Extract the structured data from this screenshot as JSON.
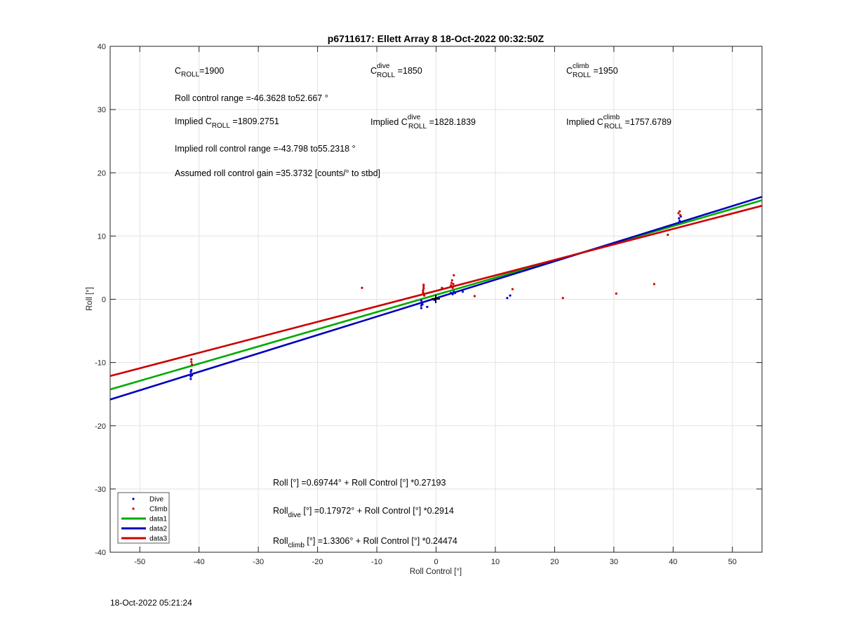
{
  "chart_data": {
    "type": "scatter",
    "title": "p6711617: Ellett Array 8 18-Oct-2022 00:32:50Z",
    "xlabel": "Roll Control [°]",
    "ylabel": "Roll [°]",
    "xlim": [
      -55,
      55
    ],
    "ylim": [
      -40,
      40
    ],
    "x_ticks": [
      -50,
      -40,
      -30,
      -20,
      -10,
      0,
      10,
      20,
      30,
      40,
      50
    ],
    "y_ticks": [
      -40,
      -30,
      -20,
      -10,
      0,
      10,
      20,
      30,
      40
    ],
    "grid": true,
    "legend_position": "bottom-left",
    "series": [
      {
        "name": "Dive",
        "kind": "points",
        "color": "#0000cc",
        "points": [
          [
            -41.4,
            -11.5
          ],
          [
            -41.4,
            -11.9
          ],
          [
            -41.4,
            -12.2
          ],
          [
            -41.4,
            -12.6
          ],
          [
            -41.3,
            -11.2
          ],
          [
            -41.2,
            -12.0
          ],
          [
            -2.5,
            -0.2
          ],
          [
            -2.5,
            -0.6
          ],
          [
            -2.5,
            -1.0
          ],
          [
            -2.5,
            -1.4
          ],
          [
            -2.3,
            -0.8
          ],
          [
            -1.5,
            -1.2
          ],
          [
            -0.3,
            -0.1
          ],
          [
            0.1,
            0.1
          ],
          [
            2.5,
            1.0
          ],
          [
            2.8,
            0.8
          ],
          [
            3.0,
            1.2
          ],
          [
            3.2,
            1.0
          ],
          [
            4.5,
            1.2
          ],
          [
            12.0,
            0.2
          ],
          [
            12.5,
            0.6
          ],
          [
            41.0,
            12.8
          ],
          [
            41.1,
            12.4
          ],
          [
            41.2,
            12.2
          ],
          [
            41.3,
            13.1
          ]
        ]
      },
      {
        "name": "Climb",
        "kind": "points",
        "color": "#cc0000",
        "points": [
          [
            -41.3,
            -9.5
          ],
          [
            -41.3,
            -9.9
          ],
          [
            -41.2,
            -10.3
          ],
          [
            -12.5,
            1.8
          ],
          [
            -2.2,
            0.8
          ],
          [
            -2.2,
            1.1
          ],
          [
            -2.2,
            1.4
          ],
          [
            -2.1,
            1.7
          ],
          [
            -2.1,
            2.0
          ],
          [
            -2.1,
            2.3
          ],
          [
            -2.0,
            0.6
          ],
          [
            1.0,
            1.8
          ],
          [
            2.5,
            2.2
          ],
          [
            2.6,
            2.6
          ],
          [
            2.7,
            3.0
          ],
          [
            2.8,
            1.8
          ],
          [
            2.9,
            2.4
          ],
          [
            3.0,
            3.8
          ],
          [
            6.5,
            0.5
          ],
          [
            12.9,
            1.6
          ],
          [
            21.4,
            0.2
          ],
          [
            30.4,
            0.9
          ],
          [
            36.8,
            2.4
          ],
          [
            39.1,
            10.2
          ],
          [
            40.9,
            13.6
          ],
          [
            41.1,
            13.9
          ],
          [
            41.2,
            13.3
          ]
        ]
      },
      {
        "name": "data1",
        "kind": "line",
        "color": "#00aa00",
        "intercept": 0.69744,
        "slope": 0.27193
      },
      {
        "name": "data2",
        "kind": "line",
        "color": "#0000bb",
        "intercept": 0.17972,
        "slope": 0.2914
      },
      {
        "name": "data3",
        "kind": "line",
        "color": "#cc0000",
        "intercept": 1.3306,
        "slope": 0.24474
      }
    ],
    "annotations": [
      {
        "id": "croll",
        "base": "C",
        "sub": "ROLL",
        "sup": "",
        "text": "=1900"
      },
      {
        "id": "croll-dive",
        "base": "C",
        "sub": "ROLL",
        "sup": "dive",
        "text": " =1850"
      },
      {
        "id": "croll-climb",
        "base": "C",
        "sub": "ROLL",
        "sup": "climb",
        "text": " =1950"
      },
      {
        "id": "range",
        "text": "Roll control range =-46.3628 to52.667 °"
      },
      {
        "id": "implied-croll",
        "prefix": "Implied C",
        "sub": "ROLL",
        "text": " =1809.2751"
      },
      {
        "id": "implied-dive",
        "prefix": "Implied C",
        "sub": "ROLL",
        "sup": "dive",
        "text": " =1828.1839"
      },
      {
        "id": "implied-climb",
        "prefix": "Implied C",
        "sub": "ROLL",
        "sup": "climb",
        "text": " =1757.6789"
      },
      {
        "id": "implied-range",
        "text": "Implied roll control range =-43.798 to55.2318 °"
      },
      {
        "id": "gain",
        "text": "Assumed roll control gain =35.3732 [counts/° to stbd]"
      },
      {
        "id": "fit-all",
        "text": "Roll [°] =0.69744° + Roll Control [°] *0.27193"
      },
      {
        "id": "fit-dive",
        "prefix": "Roll",
        "sub": "dive",
        "text": " [°] =0.17972° + Roll Control [°] *0.2914"
      },
      {
        "id": "fit-climb",
        "prefix": "Roll",
        "sub": "climb",
        "text": " [°] =1.3306° + Roll Control [°] *0.24474"
      }
    ]
  },
  "footer": {
    "timestamp": "18-Oct-2022 05:21:24"
  }
}
